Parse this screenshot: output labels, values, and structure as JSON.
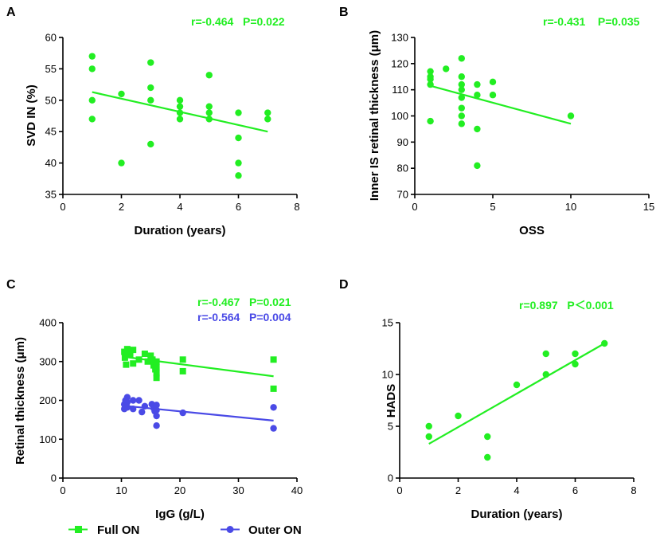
{
  "colors": {
    "green": "#22ee22",
    "blue": "#4a4ae6"
  },
  "legend": {
    "full_on": {
      "label": "Full ON",
      "marker": "square",
      "color": "#22ee22"
    },
    "outer_on": {
      "label": "Outer ON",
      "marker": "circle",
      "color": "#4a4ae6"
    }
  },
  "chart_data": [
    {
      "panel": "A",
      "type": "scatter",
      "xlabel": "Duration (years)",
      "ylabel": "SVD IN (%)",
      "xlim": [
        0,
        8
      ],
      "xticks": [
        0,
        2,
        4,
        6,
        8
      ],
      "ylim": [
        35,
        60
      ],
      "yticks": [
        35,
        40,
        45,
        50,
        55,
        60
      ],
      "series": [
        {
          "name": "SVD IN",
          "color": "#22ee22",
          "marker": "circle",
          "stat": "r=-0.464   P=0.022",
          "points": [
            [
              1,
              57
            ],
            [
              1,
              55
            ],
            [
              1,
              50
            ],
            [
              1,
              47
            ],
            [
              2,
              51
            ],
            [
              2,
              40
            ],
            [
              3,
              56
            ],
            [
              3,
              52
            ],
            [
              3,
              50
            ],
            [
              3,
              43
            ],
            [
              4,
              50
            ],
            [
              4,
              49
            ],
            [
              4,
              48
            ],
            [
              4,
              47
            ],
            [
              5,
              54
            ],
            [
              5,
              49
            ],
            [
              5,
              48
            ],
            [
              5,
              47
            ],
            [
              6,
              48
            ],
            [
              6,
              44
            ],
            [
              6,
              40
            ],
            [
              6,
              38
            ],
            [
              7,
              48
            ],
            [
              7,
              47
            ]
          ],
          "fit": [
            [
              1,
              51.3
            ],
            [
              7,
              45.0
            ]
          ]
        }
      ]
    },
    {
      "panel": "B",
      "type": "scatter",
      "xlabel": "OSS",
      "ylabel": "Inner IS retinal thickness (μm)",
      "xlim": [
        0,
        15
      ],
      "xticks": [
        0,
        5,
        10,
        15
      ],
      "ylim": [
        70,
        130
      ],
      "yticks": [
        70,
        80,
        90,
        100,
        110,
        120,
        130
      ],
      "series": [
        {
          "name": "Inner IS",
          "color": "#22ee22",
          "marker": "circle",
          "stat": "r=-0.431    P=0.035",
          "points": [
            [
              1,
              117
            ],
            [
              1,
              115
            ],
            [
              1,
              114
            ],
            [
              1,
              112
            ],
            [
              1,
              98
            ],
            [
              2,
              118
            ],
            [
              3,
              122
            ],
            [
              3,
              115
            ],
            [
              3,
              112
            ],
            [
              3,
              110
            ],
            [
              3,
              107
            ],
            [
              3,
              103
            ],
            [
              3,
              100
            ],
            [
              3,
              97
            ],
            [
              4,
              112
            ],
            [
              4,
              108
            ],
            [
              4,
              95
            ],
            [
              4,
              81
            ],
            [
              5,
              113
            ],
            [
              5,
              108
            ],
            [
              10,
              100
            ]
          ],
          "fit": [
            [
              1,
              111.5
            ],
            [
              10,
              97.0
            ]
          ]
        }
      ]
    },
    {
      "panel": "C",
      "type": "scatter",
      "xlabel": "IgG (g/L)",
      "ylabel": "Retinal thickness (μm)",
      "xlim": [
        0,
        40
      ],
      "xticks": [
        0,
        10,
        20,
        30,
        40
      ],
      "ylim": [
        0,
        400
      ],
      "yticks": [
        0,
        100,
        200,
        300,
        400
      ],
      "series": [
        {
          "name": "Full ON",
          "color": "#22ee22",
          "marker": "square",
          "stat": "r=-0.467   P=0.021",
          "points": [
            [
              10.5,
              325
            ],
            [
              10.6,
              310
            ],
            [
              10.8,
              292
            ],
            [
              11,
              332
            ],
            [
              11.5,
              318
            ],
            [
              12,
              330
            ],
            [
              12,
              295
            ],
            [
              13,
              305
            ],
            [
              14,
              320
            ],
            [
              14.5,
              300
            ],
            [
              15,
              315
            ],
            [
              15.3,
              305
            ],
            [
              15.5,
              290
            ],
            [
              15.8,
              280
            ],
            [
              16,
              300
            ],
            [
              16,
              285
            ],
            [
              16,
              270
            ],
            [
              16,
              258
            ],
            [
              20.5,
              305
            ],
            [
              20.5,
              275
            ],
            [
              36,
              305
            ],
            [
              36,
              230
            ]
          ],
          "fit": [
            [
              10.5,
              312
            ],
            [
              36,
              262
            ]
          ]
        },
        {
          "name": "Outer ON",
          "color": "#4a4ae6",
          "marker": "circle",
          "stat": "r=-0.564   P=0.004",
          "points": [
            [
              10.5,
              190
            ],
            [
              10.5,
              178
            ],
            [
              10.7,
              200
            ],
            [
              11,
              208
            ],
            [
              11,
              195
            ],
            [
              11,
              182
            ],
            [
              12,
              200
            ],
            [
              12,
              178
            ],
            [
              13,
              200
            ],
            [
              13.5,
              170
            ],
            [
              14,
              185
            ],
            [
              15.2,
              190
            ],
            [
              15.5,
              180
            ],
            [
              15.7,
              172
            ],
            [
              16,
              188
            ],
            [
              16,
              175
            ],
            [
              16,
              160
            ],
            [
              16,
              135
            ],
            [
              20.5,
              168
            ],
            [
              36,
              182
            ],
            [
              36,
              128
            ]
          ],
          "fit": [
            [
              10.5,
              186
            ],
            [
              36,
              148
            ]
          ]
        }
      ]
    },
    {
      "panel": "D",
      "type": "scatter",
      "xlabel": "Duration (years)",
      "ylabel": "HADS",
      "xlim": [
        0,
        8
      ],
      "xticks": [
        0,
        2,
        4,
        6,
        8
      ],
      "ylim": [
        0,
        15
      ],
      "yticks": [
        0,
        5,
        10,
        15
      ],
      "series": [
        {
          "name": "HADS",
          "color": "#22ee22",
          "marker": "circle",
          "stat": "r=0.897   P＜0.001",
          "points": [
            [
              1,
              5
            ],
            [
              1,
              4
            ],
            [
              2,
              6
            ],
            [
              3,
              4
            ],
            [
              3,
              2
            ],
            [
              4,
              9
            ],
            [
              5,
              12
            ],
            [
              5,
              10
            ],
            [
              6,
              12
            ],
            [
              6,
              11
            ],
            [
              7,
              13
            ]
          ],
          "fit": [
            [
              1,
              3.3
            ],
            [
              7,
              13.0
            ]
          ]
        }
      ]
    }
  ]
}
